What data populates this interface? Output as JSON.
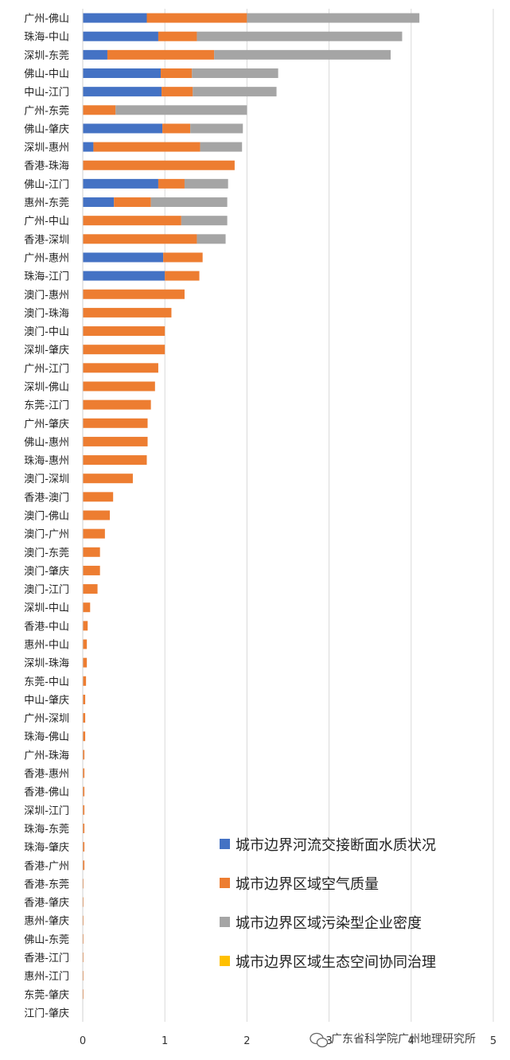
{
  "chart_data": {
    "type": "bar",
    "orientation": "horizontal",
    "stacked": true,
    "categories": [
      "广州-佛山",
      "珠海-中山",
      "深圳-东莞",
      "佛山-中山",
      "中山-江门",
      "广州-东莞",
      "佛山-肇庆",
      "深圳-惠州",
      "香港-珠海",
      "佛山-江门",
      "惠州-东莞",
      "广州-中山",
      "香港-深圳",
      "广州-惠州",
      "珠海-江门",
      "澳门-惠州",
      "澳门-珠海",
      "澳门-中山",
      "深圳-肇庆",
      "广州-江门",
      "深圳-佛山",
      "东莞-江门",
      "广州-肇庆",
      "佛山-惠州",
      "珠海-惠州",
      "澳门-深圳",
      "香港-澳门",
      "澳门-佛山",
      "澳门-广州",
      "澳门-东莞",
      "澳门-肇庆",
      "澳门-江门",
      "深圳-中山",
      "香港-中山",
      "惠州-中山",
      "深圳-珠海",
      "东莞-中山",
      "中山-肇庆",
      "广州-深圳",
      "珠海-佛山",
      "广州-珠海",
      "香港-惠州",
      "香港-佛山",
      "深圳-江门",
      "珠海-东莞",
      "珠海-肇庆",
      "香港-广州",
      "香港-东莞",
      "香港-肇庆",
      "惠州-肇庆",
      "佛山-东莞",
      "香港-江门",
      "惠州-江门",
      "东莞-肇庆",
      "江门-肇庆"
    ],
    "series": [
      {
        "name": "城市边界河流交接断面水质状况",
        "color": "#4472C4",
        "values": [
          0.78,
          0.92,
          0.3,
          0.95,
          0.96,
          0,
          0.97,
          0.13,
          0,
          0.92,
          0.38,
          0,
          0,
          0.98,
          1.0,
          0,
          0,
          0,
          0,
          0,
          0,
          0,
          0,
          0,
          0,
          0,
          0,
          0,
          0,
          0,
          0,
          0,
          0,
          0,
          0,
          0,
          0,
          0,
          0,
          0,
          0,
          0,
          0,
          0,
          0,
          0,
          0,
          0,
          0,
          0,
          0,
          0,
          0,
          0,
          0
        ]
      },
      {
        "name": "城市边界区域空气质量",
        "color": "#ED7D31",
        "values": [
          1.22,
          0.47,
          1.3,
          0.38,
          0.38,
          0.4,
          0.34,
          1.3,
          1.85,
          0.32,
          0.45,
          1.2,
          1.39,
          0.48,
          0.42,
          1.24,
          1.08,
          1.0,
          1.0,
          0.92,
          0.88,
          0.83,
          0.79,
          0.79,
          0.78,
          0.61,
          0.37,
          0.33,
          0.27,
          0.21,
          0.21,
          0.18,
          0.09,
          0.06,
          0.05,
          0.05,
          0.04,
          0.03,
          0.03,
          0.03,
          0.02,
          0.02,
          0.02,
          0.02,
          0.02,
          0.02,
          0.02,
          0.01,
          0.01,
          0.01,
          0.01,
          0.01,
          0.01,
          0.01,
          0
        ]
      },
      {
        "name": "城市边界区域污染型企业密度",
        "color": "#A5A5A5",
        "values": [
          2.1,
          2.5,
          2.15,
          1.05,
          1.02,
          1.6,
          0.64,
          0.51,
          0,
          0.53,
          0.93,
          0.56,
          0.35,
          0,
          0,
          0,
          0,
          0,
          0,
          0,
          0,
          0,
          0,
          0,
          0,
          0,
          0,
          0,
          0,
          0,
          0,
          0,
          0,
          0,
          0,
          0,
          0,
          0,
          0,
          0,
          0,
          0,
          0,
          0,
          0,
          0,
          0,
          0,
          0,
          0,
          0,
          0,
          0,
          0,
          0
        ]
      },
      {
        "name": "城市边界区域生态空间协同治理",
        "color": "#FFC000",
        "values": [
          0,
          0,
          0,
          0,
          0,
          0,
          0,
          0,
          0,
          0,
          0,
          0,
          0,
          0,
          0,
          0,
          0,
          0,
          0,
          0,
          0,
          0,
          0,
          0,
          0,
          0,
          0,
          0,
          0,
          0,
          0,
          0,
          0,
          0,
          0,
          0,
          0,
          0,
          0,
          0,
          0,
          0,
          0,
          0,
          0,
          0,
          0,
          0,
          0,
          0,
          0,
          0,
          0,
          0,
          0
        ]
      }
    ],
    "xlim": [
      0,
      5
    ],
    "xticks": [
      "0",
      "1",
      "2",
      "3",
      "4",
      "5"
    ],
    "grid": true,
    "legend_placement": "bottom-right",
    "title": "",
    "xlabel": "",
    "ylabel": ""
  },
  "watermark": {
    "text": "广东省科学院广州地理研究所",
    "icon": "wechat-icon"
  }
}
